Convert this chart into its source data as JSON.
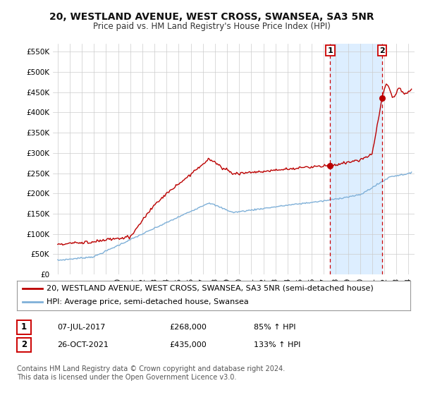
{
  "title": "20, WESTLAND AVENUE, WEST CROSS, SWANSEA, SA3 5NR",
  "subtitle": "Price paid vs. HM Land Registry's House Price Index (HPI)",
  "ylim": [
    0,
    570000
  ],
  "yticks": [
    0,
    50000,
    100000,
    150000,
    200000,
    250000,
    300000,
    350000,
    400000,
    450000,
    500000,
    550000
  ],
  "ytick_labels": [
    "£0",
    "£50K",
    "£100K",
    "£150K",
    "£200K",
    "£250K",
    "£300K",
    "£350K",
    "£400K",
    "£450K",
    "£500K",
    "£550K"
  ],
  "house_color": "#bb0000",
  "hpi_color": "#7fb0d8",
  "background_color": "#ffffff",
  "grid_color": "#cccccc",
  "shade_color": "#ddeeff",
  "vline_color": "#cc0000",
  "legend_label_house": "20, WESTLAND AVENUE, WEST CROSS, SWANSEA, SA3 5NR (semi-detached house)",
  "legend_label_hpi": "HPI: Average price, semi-detached house, Swansea",
  "annotation1_label": "1",
  "annotation1_date": "07-JUL-2017",
  "annotation1_price": "£268,000",
  "annotation1_pct": "85% ↑ HPI",
  "annotation2_label": "2",
  "annotation2_date": "26-OCT-2021",
  "annotation2_price": "£435,000",
  "annotation2_pct": "133% ↑ HPI",
  "footnote": "Contains HM Land Registry data © Crown copyright and database right 2024.\nThis data is licensed under the Open Government Licence v3.0.",
  "title_fontsize": 10,
  "subtitle_fontsize": 8.5,
  "tick_fontsize": 7.5,
  "legend_fontsize": 8,
  "annotation_fontsize": 8,
  "footnote_fontsize": 7,
  "sale1_year": 2017.52,
  "sale1_price": 268000,
  "sale2_year": 2021.82,
  "sale2_price": 435000
}
